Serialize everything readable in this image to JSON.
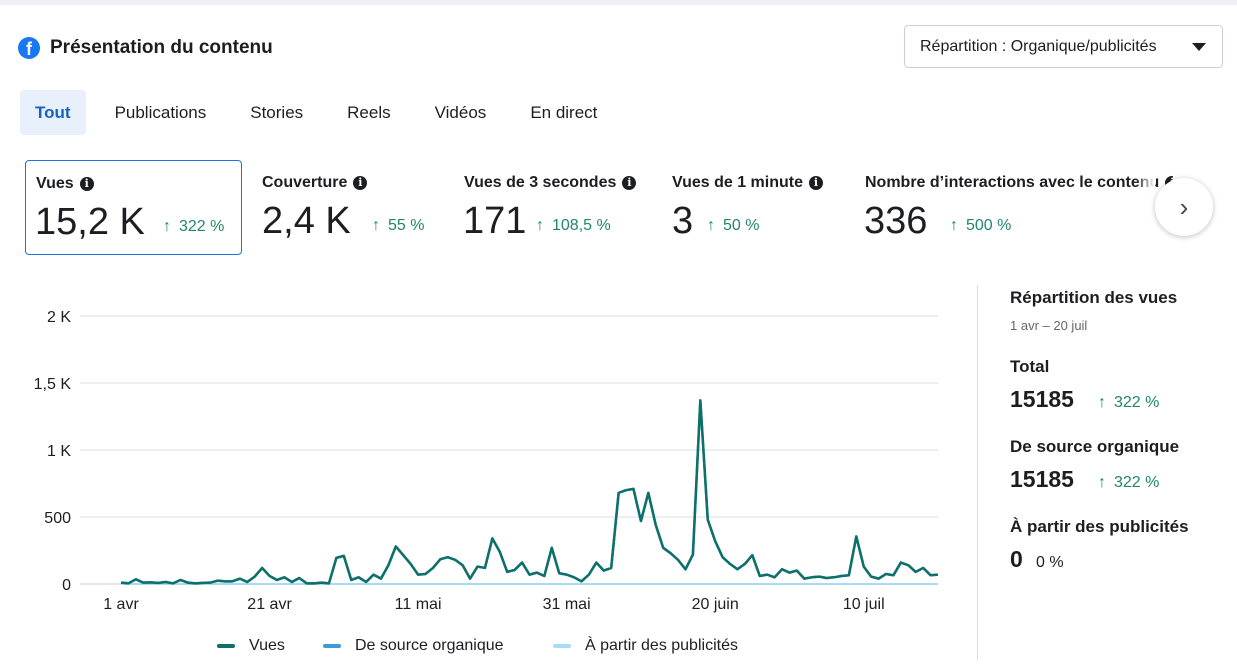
{
  "header": {
    "title": "Présentation du contenu",
    "logo_icon": "facebook-logo-icon"
  },
  "dropdown": {
    "label": "Répartition : Organique/publicités"
  },
  "tabs": [
    {
      "label": "Tout",
      "active": true
    },
    {
      "label": "Publications",
      "active": false
    },
    {
      "label": "Stories",
      "active": false
    },
    {
      "label": "Reels",
      "active": false
    },
    {
      "label": "Vidéos",
      "active": false
    },
    {
      "label": "En direct",
      "active": false
    }
  ],
  "metrics": [
    {
      "label": "Vues",
      "value": "15,2 K",
      "change": "322 %"
    },
    {
      "label": "Couverture",
      "value": "2,4 K",
      "change": "55 %"
    },
    {
      "label": "Vues de 3 secondes",
      "value": "171",
      "change": "108,5 %"
    },
    {
      "label": "Vues de 1 minute",
      "value": "3",
      "change": "50 %"
    },
    {
      "label": "Nombre d’interactions avec le contenu",
      "value": "336",
      "change": "500 %"
    }
  ],
  "chart_data": {
    "type": "line",
    "y_tick_labels": [
      "0",
      "500",
      "1 K",
      "1,5 K",
      "2 K"
    ],
    "y_tick_values": [
      0,
      500,
      1000,
      1500,
      2000
    ],
    "ylim": [
      0,
      2000
    ],
    "x_tick_labels": [
      "1 avr",
      "21 avr",
      "11 mai",
      "31 mai",
      "20 juin",
      "10 juil"
    ],
    "x_tick_days": [
      0,
      20,
      40,
      60,
      80,
      100
    ],
    "x_days": 111,
    "grid": true,
    "legend_position": "bottom",
    "series": [
      {
        "name": "Vues",
        "color": "#0e7068",
        "values": [
          10,
          5,
          35,
          10,
          12,
          8,
          15,
          5,
          30,
          10,
          5,
          8,
          10,
          25,
          20,
          20,
          40,
          15,
          55,
          120,
          60,
          30,
          50,
          15,
          45,
          5,
          5,
          10,
          5,
          195,
          210,
          30,
          50,
          15,
          70,
          40,
          140,
          280,
          215,
          150,
          70,
          75,
          120,
          185,
          200,
          180,
          140,
          40,
          130,
          120,
          340,
          240,
          90,
          105,
          160,
          70,
          85,
          60,
          270,
          80,
          70,
          50,
          20,
          70,
          160,
          100,
          120,
          680,
          700,
          710,
          470,
          680,
          440,
          270,
          230,
          180,
          110,
          220,
          1370,
          480,
          320,
          200,
          150,
          110,
          150,
          215,
          60,
          70,
          50,
          110,
          85,
          100,
          40,
          50,
          55,
          45,
          50,
          60,
          65,
          355,
          130,
          55,
          40,
          75,
          65,
          160,
          140,
          90,
          120,
          65,
          70
        ]
      },
      {
        "name": "De source organique",
        "color": "#3b9dd8",
        "values": "same-as-vues"
      },
      {
        "name": "À partir des publicités",
        "color": "#a9dcf4",
        "values": "zero"
      }
    ]
  },
  "legend": [
    {
      "label": "Vues",
      "color": "#0e7068"
    },
    {
      "label": "De source organique",
      "color": "#3b9dd8"
    },
    {
      "label": "À partir des publicités",
      "color": "#a9dcf4"
    }
  ],
  "side": {
    "title": "Répartition des vues",
    "date_range": "1 avr – 20 juil",
    "total": {
      "label": "Total",
      "value": "15185",
      "change": "322 %"
    },
    "organic": {
      "label": "De source organique",
      "value": "15185",
      "change": "322 %"
    },
    "ads": {
      "label": "À partir des publicités",
      "value": "0",
      "change": "0 %"
    }
  }
}
